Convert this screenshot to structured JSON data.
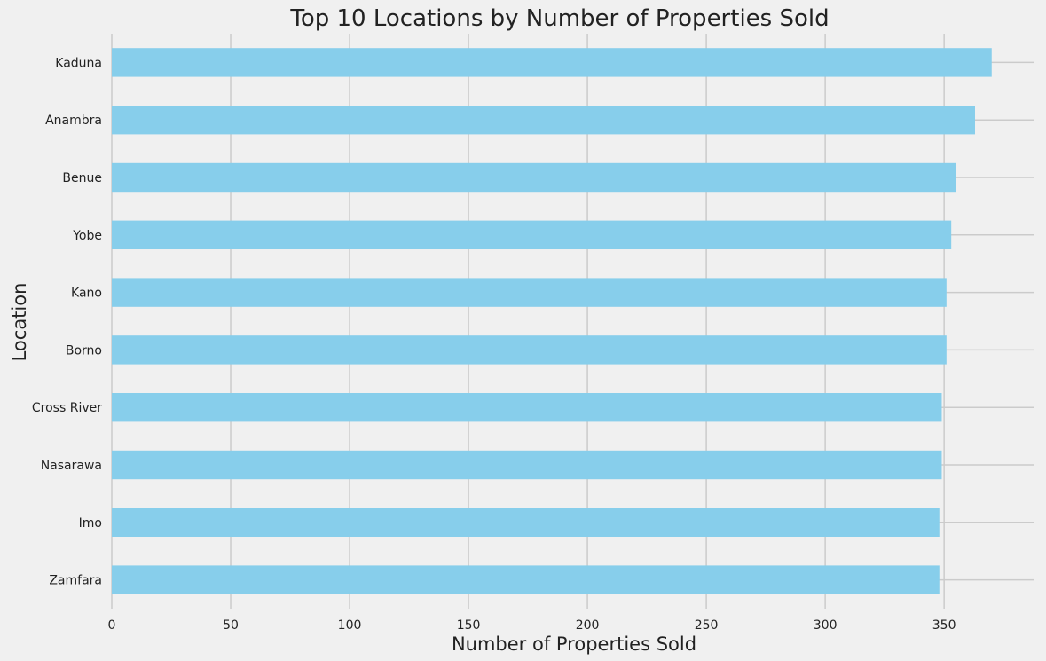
{
  "chart_data": {
    "type": "bar",
    "orientation": "horizontal",
    "title": "Top 10 Locations by Number of Properties Sold",
    "xlabel": "Number of Properties Sold",
    "ylabel": "Location",
    "categories": [
      "Kaduna",
      "Anambra",
      "Benue",
      "Yobe",
      "Kano",
      "Borno",
      "Cross River",
      "Nasarawa",
      "Imo",
      "Zamfara"
    ],
    "values": [
      370,
      363,
      355,
      353,
      351,
      351,
      349,
      349,
      348,
      348
    ],
    "xlim": [
      0,
      388
    ],
    "xticks": [
      0,
      50,
      100,
      150,
      200,
      250,
      300,
      350
    ],
    "grid": true,
    "legend": "none",
    "colors": {
      "bar": "#87ceeb",
      "background": "#f0f0f0",
      "grid": "#cbcbcb",
      "text": "#222222"
    }
  }
}
